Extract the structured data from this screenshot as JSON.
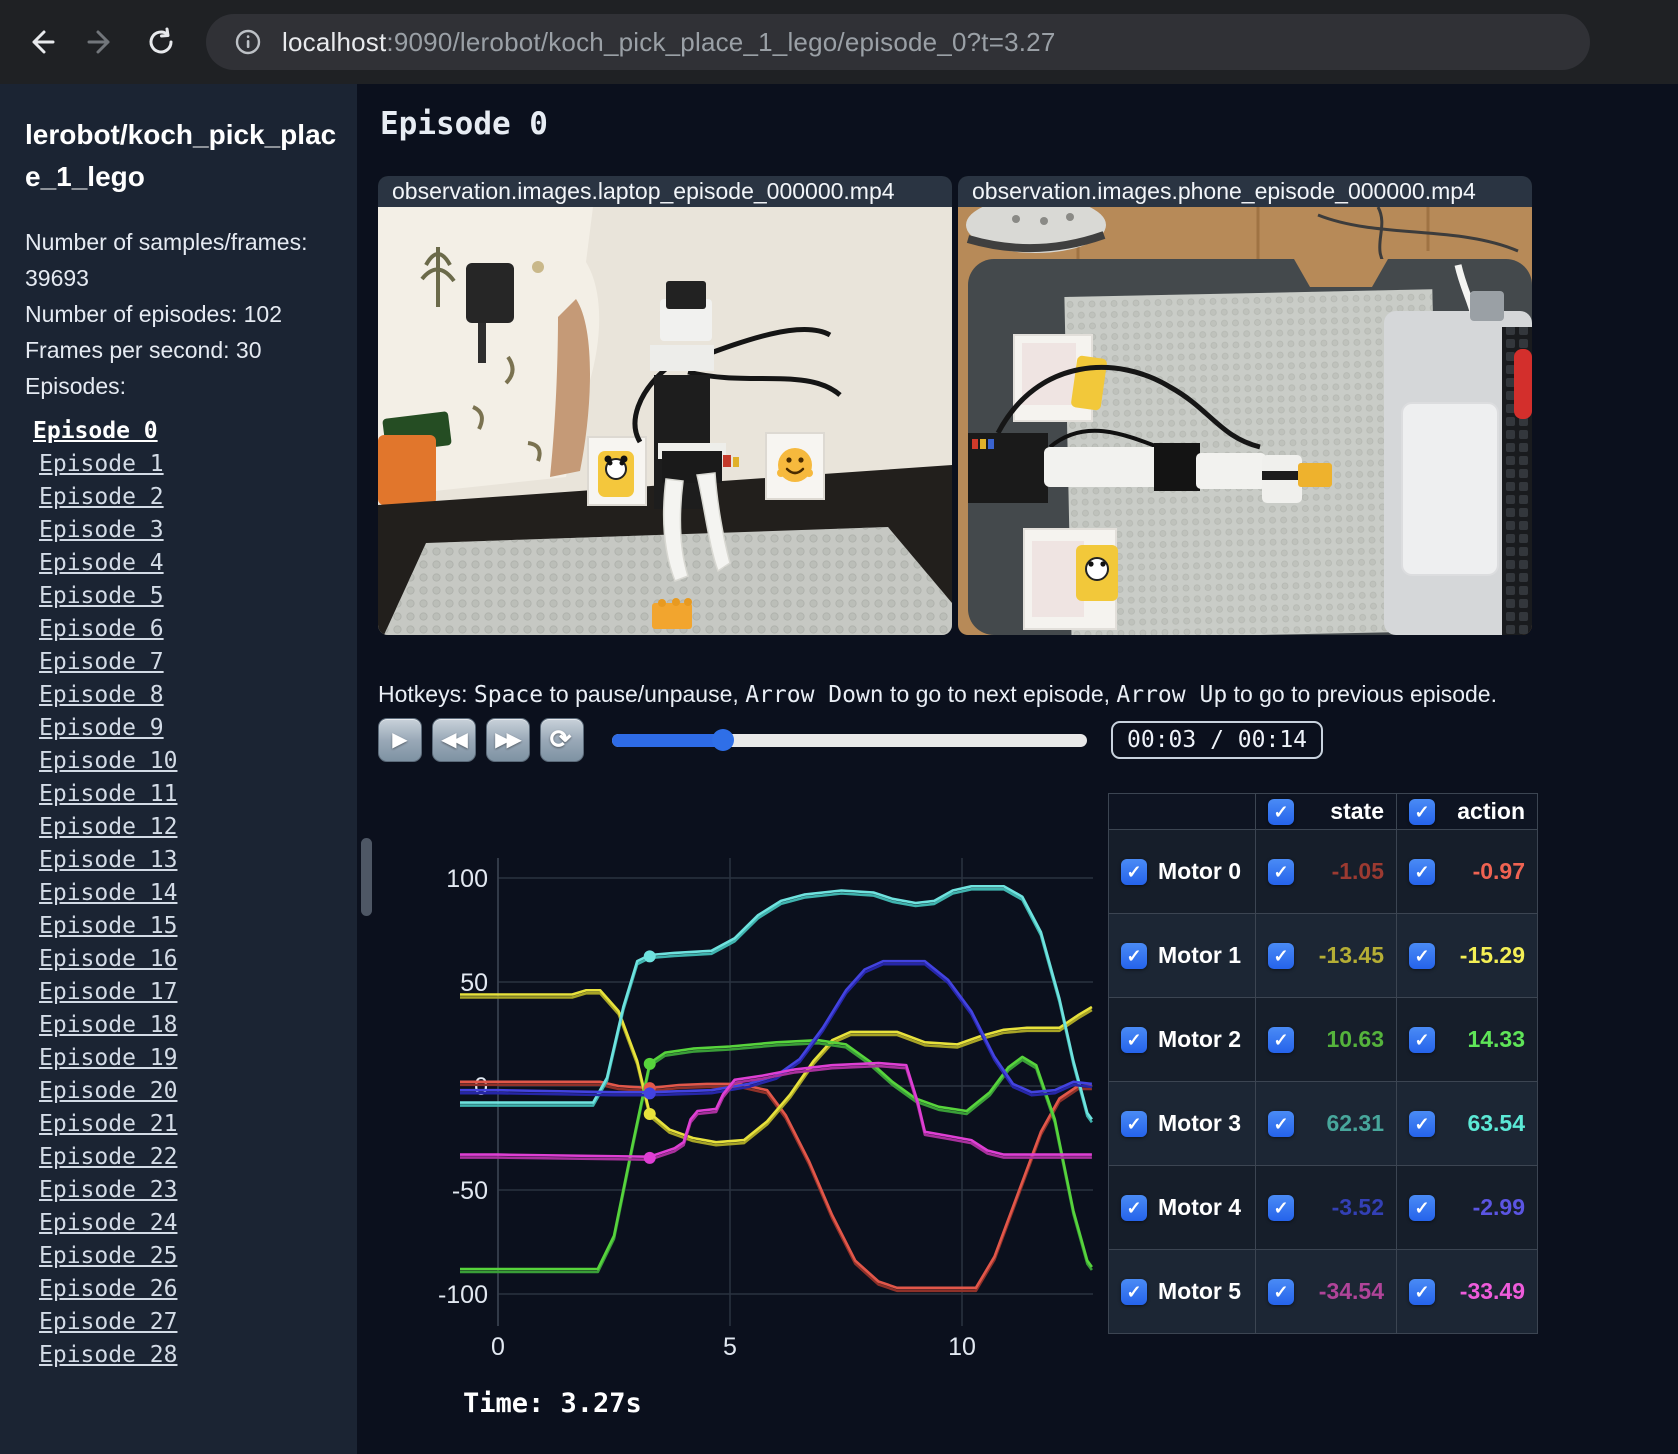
{
  "browser": {
    "url_host": "localhost",
    "url_rest": ":9090/lerobot/koch_pick_place_1_lego/episode_0?t=3.27"
  },
  "sidebar": {
    "title": "lerobot/koch_pick_place_1_lego",
    "stats": [
      "Number of samples/frames: 39693",
      "Number of episodes: 102",
      "Frames per second: 30"
    ],
    "episodes_label": "Episodes:",
    "active_episode": "Episode 0",
    "episodes": [
      "Episode 0",
      "Episode 1",
      "Episode 2",
      "Episode 3",
      "Episode 4",
      "Episode 5",
      "Episode 6",
      "Episode 7",
      "Episode 8",
      "Episode 9",
      "Episode 10",
      "Episode 11",
      "Episode 12",
      "Episode 13",
      "Episode 14",
      "Episode 15",
      "Episode 16",
      "Episode 17",
      "Episode 18",
      "Episode 19",
      "Episode 20",
      "Episode 21",
      "Episode 22",
      "Episode 23",
      "Episode 24",
      "Episode 25",
      "Episode 26",
      "Episode 27",
      "Episode 28"
    ]
  },
  "main": {
    "title": "Episode 0",
    "videos": [
      {
        "label": "observation.images.laptop_episode_000000.mp4"
      },
      {
        "label": "observation.images.phone_episode_000000.mp4"
      }
    ],
    "hotkeys": {
      "segments": [
        {
          "text": "Hotkeys: ",
          "mono": false
        },
        {
          "text": "Space",
          "mono": true
        },
        {
          "text": " to pause/unpause, ",
          "mono": false
        },
        {
          "text": "Arrow Down",
          "mono": true
        },
        {
          "text": " to go to next episode, ",
          "mono": false
        },
        {
          "text": "Arrow Up",
          "mono": true
        },
        {
          "text": " to go to previous episode.",
          "mono": false
        }
      ]
    },
    "controls": {
      "buttons": [
        "play",
        "rewind",
        "fast-forward",
        "loop"
      ],
      "progress_percent": 23.4,
      "time_display": "00:03 / 00:14"
    }
  },
  "chart_data": {
    "type": "line",
    "title": "",
    "xlabel": "",
    "ylabel": "",
    "xlim": [
      -0.82,
      12.8
    ],
    "ylim": [
      -100,
      100
    ],
    "x_ticks": [
      0,
      5,
      10
    ],
    "y_ticks": [
      100,
      50,
      0,
      -50,
      -100
    ],
    "grid": true,
    "legend_position": "none (table at right acts as legend)",
    "time_cursor": 3.27,
    "time_label": "Time: 3.27s",
    "series": [
      {
        "name": "Motor 0",
        "action_color": "#e2574a",
        "state_color": "#8f3129",
        "marker_value": -1.05,
        "points": [
          [
            0,
            2
          ],
          [
            2.2,
            2
          ],
          [
            2.6,
            0
          ],
          [
            3.27,
            -1
          ],
          [
            3.9,
            0.5
          ],
          [
            4.5,
            1
          ],
          [
            5.2,
            1
          ],
          [
            5.8,
            -2
          ],
          [
            6.2,
            -14
          ],
          [
            6.7,
            -36
          ],
          [
            7.2,
            -62
          ],
          [
            7.7,
            -84
          ],
          [
            8.2,
            -94
          ],
          [
            8.6,
            -97
          ],
          [
            10.3,
            -97
          ],
          [
            10.7,
            -82
          ],
          [
            11.2,
            -52
          ],
          [
            11.7,
            -22
          ],
          [
            12.1,
            -6
          ],
          [
            12.5,
            0
          ],
          [
            12.8,
            0
          ]
        ]
      },
      {
        "name": "Motor 1",
        "action_color": "#e8e23c",
        "state_color": "#a8a426",
        "marker_value": -13.45,
        "points": [
          [
            0,
            44
          ],
          [
            1.6,
            44
          ],
          [
            1.9,
            46
          ],
          [
            2.2,
            46
          ],
          [
            2.6,
            36
          ],
          [
            3.0,
            12
          ],
          [
            3.27,
            -13
          ],
          [
            3.7,
            -21
          ],
          [
            4.2,
            -25
          ],
          [
            4.7,
            -27
          ],
          [
            5.3,
            -26
          ],
          [
            5.8,
            -17
          ],
          [
            6.3,
            -4
          ],
          [
            6.8,
            12
          ],
          [
            7.2,
            22
          ],
          [
            7.6,
            26
          ],
          [
            8.6,
            26
          ],
          [
            9.2,
            21
          ],
          [
            9.9,
            20
          ],
          [
            10.4,
            24
          ],
          [
            10.9,
            27
          ],
          [
            11.4,
            28
          ],
          [
            12.1,
            28
          ],
          [
            12.5,
            34
          ],
          [
            12.8,
            38
          ]
        ]
      },
      {
        "name": "Motor 2",
        "action_color": "#57d43c",
        "state_color": "#3a9e38",
        "marker_value": 10.63,
        "points": [
          [
            0,
            -88
          ],
          [
            2.15,
            -88
          ],
          [
            2.5,
            -72
          ],
          [
            2.9,
            -28
          ],
          [
            3.27,
            11
          ],
          [
            3.6,
            16
          ],
          [
            4.2,
            18
          ],
          [
            5.0,
            19
          ],
          [
            6.0,
            21
          ],
          [
            6.9,
            22
          ],
          [
            7.5,
            20
          ],
          [
            8.0,
            12
          ],
          [
            8.5,
            2
          ],
          [
            9.0,
            -6
          ],
          [
            9.5,
            -10
          ],
          [
            10.1,
            -12
          ],
          [
            10.6,
            -3
          ],
          [
            11.0,
            9
          ],
          [
            11.3,
            14
          ],
          [
            11.6,
            10
          ],
          [
            12.0,
            -16
          ],
          [
            12.4,
            -60
          ],
          [
            12.7,
            -84
          ],
          [
            12.8,
            -87
          ]
        ]
      },
      {
        "name": "Motor 3",
        "action_color": "#6fe3df",
        "state_color": "#3fb3ae",
        "marker_value": 62.31,
        "points": [
          [
            0,
            -8
          ],
          [
            2.05,
            -8
          ],
          [
            2.35,
            4
          ],
          [
            2.7,
            38
          ],
          [
            3.0,
            60
          ],
          [
            3.27,
            63
          ],
          [
            3.8,
            64
          ],
          [
            4.6,
            65
          ],
          [
            5.1,
            71
          ],
          [
            5.6,
            82
          ],
          [
            6.1,
            89
          ],
          [
            6.6,
            92
          ],
          [
            7.4,
            94
          ],
          [
            8.1,
            93
          ],
          [
            8.5,
            90
          ],
          [
            9.0,
            88
          ],
          [
            9.4,
            89
          ],
          [
            9.8,
            94
          ],
          [
            10.2,
            96
          ],
          [
            10.9,
            96
          ],
          [
            11.3,
            91
          ],
          [
            11.7,
            74
          ],
          [
            12.1,
            42
          ],
          [
            12.4,
            12
          ],
          [
            12.7,
            -13
          ],
          [
            12.8,
            -16
          ]
        ]
      },
      {
        "name": "Motor 4",
        "action_color": "#4343e0",
        "state_color": "#2626a8",
        "marker_value": -3.52,
        "points": [
          [
            0,
            -2
          ],
          [
            2.5,
            -3
          ],
          [
            3.27,
            -3
          ],
          [
            4.6,
            -2
          ],
          [
            5.4,
            1
          ],
          [
            6.0,
            5
          ],
          [
            6.5,
            13
          ],
          [
            7.0,
            28
          ],
          [
            7.5,
            46
          ],
          [
            7.9,
            56
          ],
          [
            8.3,
            60
          ],
          [
            9.2,
            60
          ],
          [
            9.7,
            51
          ],
          [
            10.2,
            36
          ],
          [
            10.7,
            14
          ],
          [
            11.1,
            1
          ],
          [
            11.5,
            -3
          ],
          [
            12.0,
            -2
          ],
          [
            12.4,
            2
          ],
          [
            12.8,
            1
          ]
        ]
      },
      {
        "name": "Motor 5",
        "action_color": "#df3fd4",
        "state_color": "#a8309c",
        "marker_value": -34.54,
        "points": [
          [
            0,
            -33
          ],
          [
            3.27,
            -34
          ],
          [
            3.8,
            -30
          ],
          [
            4.0,
            -27
          ],
          [
            4.15,
            -16
          ],
          [
            4.3,
            -12
          ],
          [
            4.7,
            -11
          ],
          [
            4.85,
            -4
          ],
          [
            5.1,
            3
          ],
          [
            5.7,
            5
          ],
          [
            6.4,
            8
          ],
          [
            7.2,
            10
          ],
          [
            8.2,
            11
          ],
          [
            8.8,
            10
          ],
          [
            9.05,
            -8
          ],
          [
            9.2,
            -22
          ],
          [
            9.7,
            -24
          ],
          [
            10.2,
            -26
          ],
          [
            10.55,
            -31
          ],
          [
            10.9,
            -33
          ],
          [
            12.8,
            -33
          ]
        ]
      }
    ]
  },
  "table": {
    "headers": [
      {
        "key": "state",
        "label": "state"
      },
      {
        "key": "action",
        "label": "action"
      }
    ],
    "rows": [
      {
        "name": "Motor 0",
        "state": "-1.05",
        "action": "-0.97",
        "state_color": "#9c3a31",
        "action_color": "#ef6352"
      },
      {
        "name": "Motor 1",
        "state": "-13.45",
        "action": "-15.29",
        "state_color": "#b5ae35",
        "action_color": "#f4ef55"
      },
      {
        "name": "Motor 2",
        "state": "10.63",
        "action": "14.33",
        "state_color": "#55b33c",
        "action_color": "#5fe558"
      },
      {
        "name": "Motor 3",
        "state": "62.31",
        "action": "63.54",
        "state_color": "#48a79c",
        "action_color": "#5ce9d6"
      },
      {
        "name": "Motor 4",
        "state": "-3.52",
        "action": "-2.99",
        "state_color": "#3340b5",
        "action_color": "#5b55e3"
      },
      {
        "name": "Motor 5",
        "state": "-34.54",
        "action": "-33.49",
        "state_color": "#b04499",
        "action_color": "#ef5cdb"
      }
    ]
  }
}
